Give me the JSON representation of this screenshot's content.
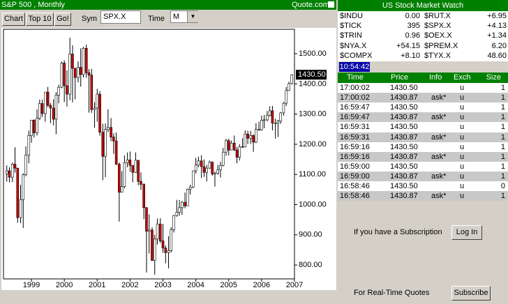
{
  "header": {
    "title": "S&P 500 , Monthly",
    "site": "Quote.com"
  },
  "toolbar": {
    "buttons": [
      "Chart",
      "Top 10",
      "Go!"
    ],
    "sym_label": "Sym",
    "sym_value": "SPX.X",
    "time_label": "Time",
    "time_value": "M"
  },
  "chart_data": {
    "type": "candlestick",
    "up_color": "#ffffff",
    "down_color": "#cc0000",
    "x": [
      1998.25,
      1998.33,
      1998.42,
      1998.5,
      1998.58,
      1998.67,
      1998.75,
      1998.83,
      1998.92,
      1999,
      1999.08,
      1999.17,
      1999.25,
      1999.33,
      1999.42,
      1999.5,
      1999.58,
      1999.67,
      1999.75,
      1999.83,
      1999.92,
      2000,
      2000.08,
      2000.17,
      2000.25,
      2000.33,
      2000.42,
      2000.5,
      2000.58,
      2000.67,
      2000.75,
      2000.83,
      2000.92,
      2001,
      2001.08,
      2001.17,
      2001.25,
      2001.33,
      2001.42,
      2001.5,
      2001.58,
      2001.67,
      2001.75,
      2001.83,
      2001.92,
      2002,
      2002.08,
      2002.17,
      2002.25,
      2002.33,
      2002.42,
      2002.5,
      2002.58,
      2002.67,
      2002.75,
      2002.83,
      2002.92,
      2003,
      2003.08,
      2003.17,
      2003.25,
      2003.33,
      2003.42,
      2003.5,
      2003.58,
      2003.67,
      2003.75,
      2003.83,
      2003.92,
      2004,
      2004.08,
      2004.17,
      2004.25,
      2004.33,
      2004.42,
      2004.5,
      2004.58,
      2004.67,
      2004.75,
      2004.83,
      2004.92,
      2005,
      2005.08,
      2005.17,
      2005.25,
      2005.33,
      2005.42,
      2005.5,
      2005.58,
      2005.67,
      2005.75,
      2005.83,
      2005.92,
      2006,
      2006.08,
      2006.17,
      2006.25,
      2006.33,
      2006.42,
      2006.5,
      2006.58,
      2006.67,
      2006.75,
      2006.83,
      2006.92
    ],
    "open": [
      1102,
      1112,
      1091,
      1134,
      1121,
      957,
      1017,
      1099,
      1164,
      1229,
      1280,
      1238,
      1286,
      1335,
      1302,
      1373,
      1329,
      1320,
      1283,
      1363,
      1389,
      1469,
      1394,
      1366,
      1499,
      1452,
      1421,
      1455,
      1431,
      1518,
      1437,
      1429,
      1315,
      1320,
      1366,
      1240,
      1160,
      1249,
      1256,
      1224,
      1211,
      1134,
      1041,
      1060,
      1139,
      1148,
      1130,
      1107,
      1147,
      1077,
      1067,
      990,
      912,
      916,
      815,
      886,
      936,
      880,
      856,
      841,
      848,
      917,
      964,
      975,
      990,
      1008,
      996,
      1051,
      1058,
      1112,
      1131,
      1145,
      1126,
      1107,
      1121,
      1141,
      1102,
      1104,
      1115,
      1130,
      1174,
      1212,
      1181,
      1204,
      1181,
      1157,
      1192,
      1191,
      1234,
      1220,
      1229,
      1207,
      1249,
      1248,
      1280,
      1281,
      1295,
      1311,
      1270,
      1270,
      1277,
      1304,
      1336,
      1378,
      1401
    ],
    "high": [
      1130,
      1124,
      1139,
      1190,
      1122,
      1066,
      1104,
      1193,
      1245,
      1280,
      1283,
      1316,
      1348,
      1348,
      1373,
      1390,
      1337,
      1349,
      1373,
      1397,
      1474,
      1478,
      1445,
      1553,
      1528,
      1453,
      1475,
      1518,
      1523,
      1530,
      1449,
      1450,
      1340,
      1384,
      1376,
      1268,
      1269,
      1316,
      1287,
      1236,
      1239,
      1140,
      1111,
      1163,
      1173,
      1176,
      1131,
      1173,
      1147,
      1107,
      1071,
      992,
      968,
      925,
      900,
      954,
      955,
      936,
      865,
      895,
      926,
      966,
      1016,
      1015,
      1012,
      1040,
      1053,
      1066,
      1112,
      1155,
      1159,
      1164,
      1150,
      1132,
      1146,
      1143,
      1110,
      1132,
      1142,
      1188,
      1218,
      1218,
      1212,
      1229,
      1191,
      1200,
      1220,
      1246,
      1245,
      1244,
      1233,
      1270,
      1275,
      1295,
      1297,
      1310,
      1326,
      1327,
      1285,
      1281,
      1307,
      1340,
      1390,
      1407,
      1432
    ],
    "low": [
      1076,
      1074,
      1075,
      1106,
      940,
      939,
      923,
      1094,
      1137,
      1205,
      1222,
      1229,
      1280,
      1291,
      1275,
      1323,
      1270,
      1263,
      1233,
      1336,
      1386,
      1340,
      1325,
      1346,
      1339,
      1349,
      1405,
      1391,
      1421,
      1420,
      1305,
      1304,
      1255,
      1275,
      1228,
      1081,
      1091,
      1240,
      1210,
      1168,
      1131,
      944,
      1040,
      1054,
      1124,
      1109,
      1074,
      1105,
      1064,
      1049,
      952,
      775,
      838,
      815,
      768,
      868,
      873,
      841,
      806,
      789,
      842,
      908,
      960,
      963,
      966,
      988,
      996,
      1034,
      1055,
      1103,
      1124,
      1088,
      1092,
      1077,
      1119,
      1096,
      1060,
      1099,
      1090,
      1127,
      1162,
      1163,
      1180,
      1178,
      1137,
      1146,
      1191,
      1191,
      1201,
      1201,
      1175,
      1204,
      1246,
      1245,
      1253,
      1276,
      1292,
      1246,
      1219,
      1224,
      1268,
      1295,
      1327,
      1377,
      1398
    ],
    "close": [
      1112,
      1091,
      1134,
      1121,
      957,
      1017,
      1099,
      1164,
      1229,
      1280,
      1238,
      1286,
      1335,
      1302,
      1373,
      1329,
      1320,
      1283,
      1363,
      1389,
      1469,
      1394,
      1366,
      1499,
      1452,
      1421,
      1455,
      1431,
      1518,
      1437,
      1429,
      1315,
      1320,
      1366,
      1240,
      1160,
      1249,
      1256,
      1224,
      1211,
      1134,
      1041,
      1060,
      1139,
      1148,
      1130,
      1107,
      1147,
      1077,
      1067,
      990,
      912,
      916,
      815,
      886,
      936,
      880,
      856,
      841,
      848,
      917,
      964,
      975,
      990,
      1008,
      996,
      1051,
      1058,
      1112,
      1131,
      1145,
      1126,
      1107,
      1121,
      1141,
      1102,
      1104,
      1115,
      1130,
      1174,
      1212,
      1181,
      1204,
      1181,
      1157,
      1192,
      1191,
      1234,
      1220,
      1229,
      1207,
      1249,
      1248,
      1280,
      1281,
      1295,
      1311,
      1270,
      1270,
      1277,
      1304,
      1336,
      1378,
      1401,
      1430.5
    ],
    "xlim": [
      1998.15,
      2007
    ],
    "xticks": [
      1999,
      2000,
      2001,
      2002,
      2003,
      2004,
      2005,
      2006,
      2007
    ],
    "ylim": [
      754,
      1581
    ],
    "yticks": [
      {
        "value": 800,
        "label": "800.00"
      },
      {
        "value": 900,
        "label": "900.00"
      },
      {
        "value": 1000,
        "label": "1000.00"
      },
      {
        "value": 1100,
        "label": "1100.00"
      },
      {
        "value": 1200,
        "label": "1200.00"
      },
      {
        "value": 1300,
        "label": "1300.00"
      },
      {
        "value": 1400,
        "label": "1400.00"
      },
      {
        "value": 1500,
        "label": "1500.00"
      }
    ],
    "last_price": 1430.5,
    "last_price_label": "1430.50",
    "grid": false
  },
  "market_watch": {
    "title": "US Stock Market Watch",
    "rows": [
      [
        "$INDU",
        "0.00",
        "$RUT.X",
        "+6.95"
      ],
      [
        "$TICK",
        "395",
        "$SPX.X",
        "+4.13"
      ],
      [
        "$TRIN",
        "0.96",
        "$OEX.X",
        "+1.34"
      ],
      [
        "$NYA.X",
        "+54.15",
        "$PREM.X",
        "6.20"
      ],
      [
        "$COMPX",
        "+8.10",
        "$TYX.X",
        "48.60"
      ]
    ],
    "clock": "10:54:42"
  },
  "trades": {
    "columns": [
      "Time",
      "Price",
      "Info",
      "Exch",
      "Size"
    ],
    "rows": [
      [
        "17:00:02",
        "1430.50",
        null,
        "u",
        "1"
      ],
      [
        "17:00:02",
        "1430.87",
        "ask*",
        "u",
        "1"
      ],
      [
        "16:59:47",
        "1430.50",
        null,
        "u",
        "1"
      ],
      [
        "16:59:47",
        "1430.87",
        "ask*",
        "u",
        "1"
      ],
      [
        "16:59:31",
        "1430.50",
        null,
        "u",
        "1"
      ],
      [
        "16:59:31",
        "1430.87",
        "ask*",
        "u",
        "1"
      ],
      [
        "16:59:16",
        "1430.50",
        null,
        "u",
        "1"
      ],
      [
        "16:59:16",
        "1430.87",
        "ask*",
        "u",
        "1"
      ],
      [
        "16:59:00",
        "1430.50",
        null,
        "u",
        "1"
      ],
      [
        "16:59:00",
        "1430.87",
        "ask*",
        "u",
        "1"
      ],
      [
        "16:58:46",
        "1430.50",
        null,
        "u",
        "0"
      ],
      [
        "16:58:46",
        "1430.87",
        "ask*",
        "u",
        "1"
      ]
    ]
  },
  "subscription": {
    "login_text": "If you have a Subscription",
    "login_button": "Log In",
    "subscribe_text": "For Real-Time Quotes",
    "subscribe_button": "Subscribe"
  }
}
